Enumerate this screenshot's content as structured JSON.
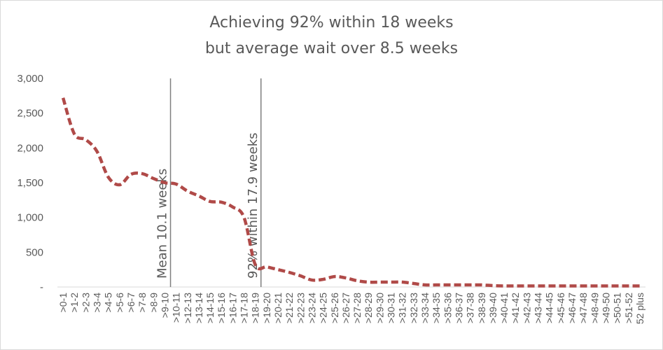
{
  "chart_data": {
    "type": "line",
    "title": "Achieving 92% within 18 weeks",
    "subtitle": "but average wait over 8.5 weeks",
    "xlabel": "",
    "ylabel": "",
    "ylim": [
      0,
      3000
    ],
    "yticks": [
      0,
      500,
      1000,
      1500,
      2000,
      2500,
      3000
    ],
    "ytick_labels": [
      "-",
      "500",
      "1,000",
      "1,500",
      "2,000",
      "2,500",
      "3,000"
    ],
    "grid": false,
    "legend": "none",
    "line_color": "#b04a48",
    "line_style": "dashed",
    "categories": [
      ">0-1",
      ">1-2",
      ">2-3",
      ">3-4",
      ">4-5",
      ">5-6",
      ">6-7",
      ">7-8",
      ">8-9",
      ">9-10",
      ">10-11",
      ">12-13",
      ">13-14",
      ">14-15",
      ">15-16",
      ">16-17",
      ">17-18",
      ">18-19",
      ">19-20",
      ">20-21",
      ">21-22",
      ">22-23",
      ">23-24",
      ">24-25",
      ">25-26",
      ">26-27",
      ">27-28",
      ">28-29",
      ">29-30",
      ">30-31",
      ">31-32",
      ">32-33",
      ">33-34",
      ">34-35",
      ">35-36",
      ">36-37",
      ">37-38",
      ">38-39",
      ">39-40",
      ">40-41",
      ">41-42",
      ">42-43",
      ">43-44",
      ">44-45",
      ">45-46",
      ">46-47",
      ">47-48",
      ">48-49",
      ">49-50",
      ">50-51",
      ">51-52",
      "52 plus"
    ],
    "values": [
      2720,
      2200,
      2120,
      1950,
      1580,
      1470,
      1620,
      1630,
      1560,
      1500,
      1480,
      1380,
      1310,
      1230,
      1220,
      1150,
      1000,
      320,
      290,
      250,
      210,
      160,
      100,
      110,
      150,
      130,
      90,
      70,
      70,
      70,
      70,
      50,
      30,
      30,
      30,
      30,
      30,
      30,
      20,
      15,
      15,
      15,
      15,
      15,
      15,
      15,
      15,
      15,
      15,
      15,
      15,
      15
    ],
    "annotations": [
      {
        "label": "Mean 10.1 weeks",
        "category_index": 10
      },
      {
        "label": "92% within 17.9 weeks",
        "category_index": 18
      }
    ]
  }
}
